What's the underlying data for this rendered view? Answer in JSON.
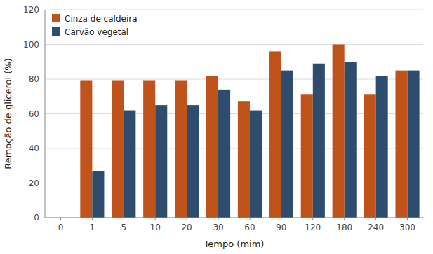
{
  "chart_data": {
    "type": "bar",
    "categories": [
      "0",
      "1",
      "5",
      "10",
      "20",
      "30",
      "60",
      "90",
      "120",
      "180",
      "240",
      "300"
    ],
    "series": [
      {
        "name": "Cinza de caldeira",
        "color": "#c0531a",
        "values": [
          0,
          79,
          79,
          79,
          79,
          82,
          67,
          96,
          71,
          100,
          71,
          85
        ]
      },
      {
        "name": "Carvão vegetal",
        "color": "#2e4d6e",
        "values": [
          0,
          27,
          62,
          65,
          65,
          74,
          62,
          85,
          89,
          90,
          82,
          85
        ]
      }
    ],
    "xlabel": "Tempo (mim)",
    "ylabel": "Remoção de glicerol (%)",
    "ylim": [
      0,
      120
    ],
    "yticks": [
      0,
      20,
      40,
      60,
      80,
      100,
      120
    ],
    "grid": true,
    "legend": "upper left"
  }
}
